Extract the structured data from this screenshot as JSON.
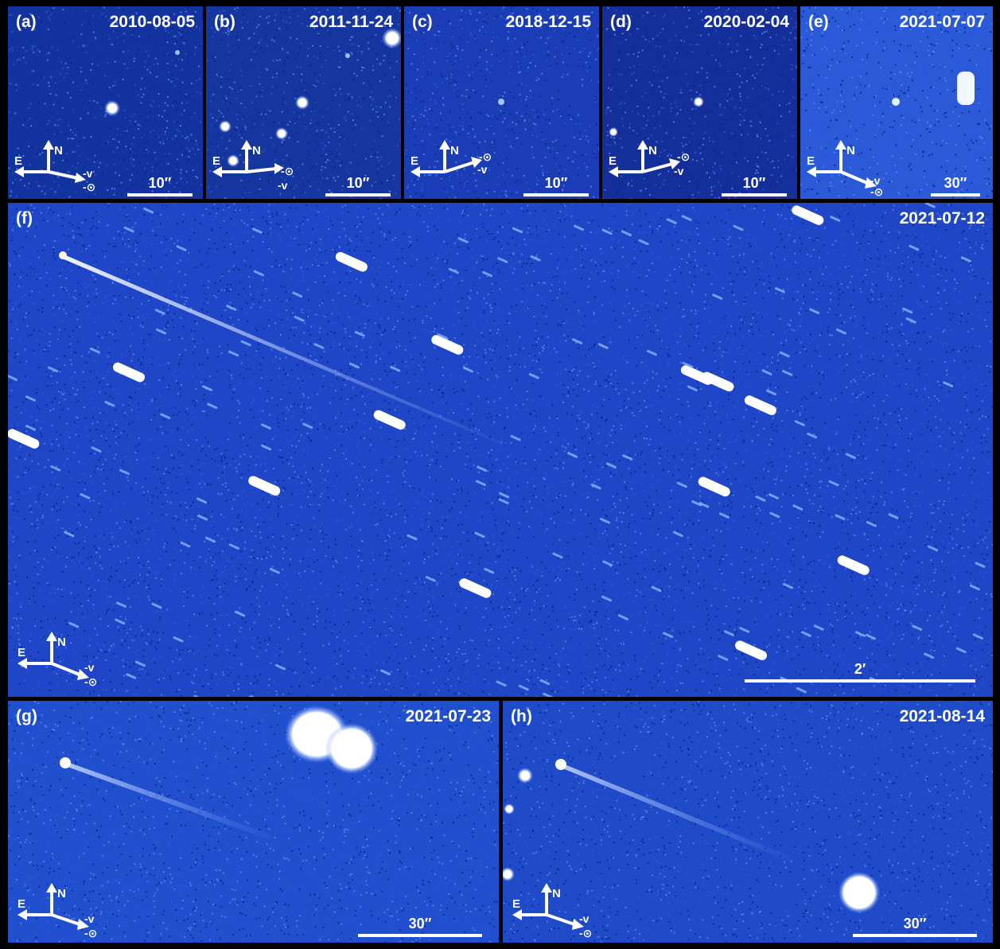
{
  "panels": [
    {
      "id": "a",
      "label": "(a)",
      "date": "2010-08-05",
      "scale": "10′′",
      "compass": {
        "n": "N",
        "e": "E",
        "v": "-v",
        "sun": "-⊙"
      }
    },
    {
      "id": "b",
      "label": "(b)",
      "date": "2011-11-24",
      "scale": "10′′",
      "compass": {
        "n": "N",
        "e": "E",
        "v": "-v",
        "sun": "-⊙"
      }
    },
    {
      "id": "c",
      "label": "(c)",
      "date": "2018-12-15",
      "scale": "10′′",
      "compass": {
        "n": "N",
        "e": "E",
        "v": "-v",
        "sun": "-⊙"
      }
    },
    {
      "id": "d",
      "label": "(d)",
      "date": "2020-02-04",
      "scale": "10′′",
      "compass": {
        "n": "N",
        "e": "E",
        "v": "-v",
        "sun": "-⊙"
      }
    },
    {
      "id": "e",
      "label": "(e)",
      "date": "2021-07-07",
      "scale": "30′′",
      "compass": {
        "n": "N",
        "e": "E",
        "v": "-v",
        "sun": "-⊙"
      }
    },
    {
      "id": "f",
      "label": "(f)",
      "date": "2021-07-12",
      "scale": "2′",
      "compass": {
        "n": "N",
        "e": "E",
        "v": "-v",
        "sun": "-⊙"
      }
    },
    {
      "id": "g",
      "label": "(g)",
      "date": "2021-07-23",
      "scale": "30′′",
      "compass": {
        "n": "N",
        "e": "E",
        "v": "-v",
        "sun": "-⊙"
      }
    },
    {
      "id": "h",
      "label": "(h)",
      "date": "2021-08-14",
      "scale": "30′′",
      "compass": {
        "n": "N",
        "e": "E",
        "v": "-v",
        "sun": "-⊙"
      }
    }
  ],
  "colors": {
    "sky_dark": "#0d2a9a",
    "sky_mid": "#1d44c4",
    "sky_light": "#3a6ee8",
    "star": "#ffffff",
    "border": "#000000"
  }
}
